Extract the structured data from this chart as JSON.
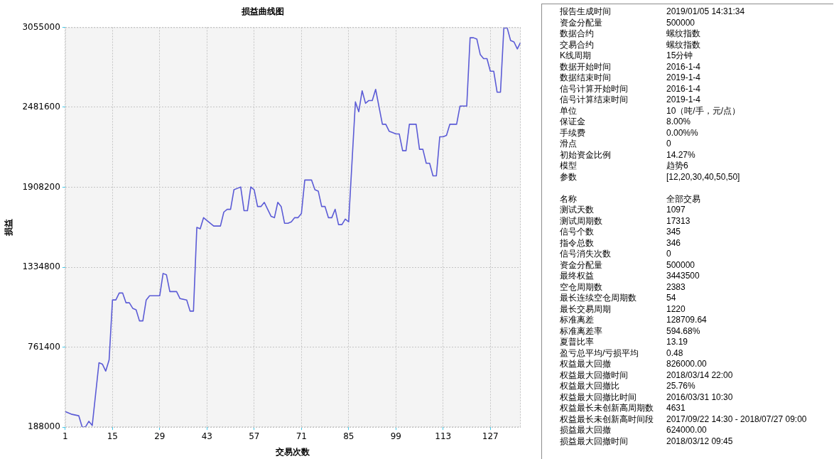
{
  "chart_data": [
    {
      "type": "line",
      "title": "损益曲线图",
      "xlabel": "交易次数",
      "ylabel": "损益",
      "color": "#5b5bd6",
      "x": [
        1,
        3,
        5,
        6,
        7,
        8,
        9,
        11,
        12,
        13,
        14,
        15,
        16,
        17,
        18,
        19,
        20,
        21,
        22,
        23,
        24,
        25,
        26,
        29,
        30,
        31,
        32,
        34,
        35,
        37,
        38,
        39,
        40,
        41,
        42,
        43,
        45,
        47,
        48,
        49,
        50,
        51,
        52,
        53,
        54,
        55,
        56,
        57,
        58,
        59,
        60,
        61,
        62,
        63,
        64,
        65,
        66,
        67,
        68,
        69,
        70,
        71,
        72,
        73,
        74,
        75,
        76,
        77,
        78,
        79,
        80,
        81,
        82,
        83,
        84,
        85,
        87,
        88,
        89,
        90,
        91,
        92,
        93,
        95,
        96,
        97,
        98,
        99,
        100,
        101,
        102,
        103,
        105,
        106,
        107,
        108,
        109,
        110,
        111,
        112,
        113,
        114,
        115,
        116,
        117,
        118,
        119,
        120,
        121,
        122,
        123,
        124,
        125,
        126,
        127,
        128,
        129,
        130,
        131,
        132,
        133,
        134,
        135,
        136
      ],
      "values": [
        300000,
        280000,
        270000,
        190000,
        190000,
        230000,
        200000,
        650000,
        640000,
        590000,
        670000,
        1100000,
        1100000,
        1150000,
        1150000,
        1080000,
        1080000,
        1040000,
        1030000,
        950000,
        950000,
        1100000,
        1130000,
        1130000,
        1290000,
        1280000,
        1160000,
        1160000,
        1110000,
        1100000,
        1020000,
        1020000,
        1620000,
        1610000,
        1690000,
        1670000,
        1630000,
        1630000,
        1730000,
        1750000,
        1750000,
        1890000,
        1900000,
        1910000,
        1740000,
        1740000,
        1910000,
        1890000,
        1770000,
        1770000,
        1800000,
        1750000,
        1700000,
        1690000,
        1800000,
        1770000,
        1650000,
        1650000,
        1660000,
        1690000,
        1690000,
        1720000,
        1960000,
        1960000,
        1960000,
        1890000,
        1880000,
        1770000,
        1770000,
        1690000,
        1690000,
        1750000,
        1640000,
        1640000,
        1680000,
        1660000,
        2520000,
        2450000,
        2600000,
        2510000,
        2530000,
        2530000,
        2610000,
        2360000,
        2360000,
        2310000,
        2300000,
        2290000,
        2290000,
        2170000,
        2170000,
        2360000,
        2360000,
        2180000,
        2180000,
        2080000,
        2080000,
        1990000,
        1990000,
        2270000,
        2270000,
        2280000,
        2360000,
        2360000,
        2360000,
        2490000,
        2490000,
        2490000,
        2980000,
        2980000,
        2970000,
        2860000,
        2830000,
        2830000,
        2740000,
        2740000,
        2590000,
        2590000,
        3050000,
        3050000,
        2960000,
        2950000,
        2900000,
        2950000
      ],
      "xlim": [
        1,
        136
      ],
      "xticks": [
        1,
        15,
        29,
        43,
        57,
        71,
        85,
        99,
        113,
        127
      ],
      "ylim": [
        188000,
        3055000
      ],
      "yticks": [
        188000,
        761400,
        1334800,
        1908200,
        2481600,
        3055000
      ],
      "grid": true
    },
    {
      "type": "other",
      "annotations": [
        "报告生成时间",
        "2019/01/05 14:31:34",
        "资金分配量",
        "500000",
        "数据合约",
        "螺纹指数",
        "交易合约",
        "螺纹指数",
        "K线周期",
        "15分钟",
        "数据开始时间",
        "2016-1-4",
        "数据结束时间",
        "2019-1-4",
        "信号计算开始时间",
        "2016-1-4",
        "信号计算结束时间",
        "2019-1-4",
        "单位",
        "10（吨/手，元/点）",
        "保证金",
        "8.00%",
        "手续费",
        "0.00%%",
        "滑点",
        "0",
        "初始资金比例",
        "14.27%",
        "模型",
        "趋势6",
        "参数",
        "[12,20,30,40,50,50]"
      ]
    },
    {
      "type": "other",
      "annotations": [
        "名称",
        "全部交易",
        "测试天数",
        "1097",
        "测试周期数",
        "17313",
        "信号个数",
        "345",
        "指令总数",
        "346",
        "信号消失次数",
        "0",
        "资金分配量",
        "500000",
        "最终权益",
        "3443500",
        "空仓周期数",
        "2383",
        "最长连续空仓周期数",
        "54",
        "最长交易周期",
        "1220",
        "标准离差",
        "128709.64",
        "标准离差率",
        "594.68%",
        "夏普比率",
        "13.19",
        "盈亏总平均/亏损平均",
        "0.48",
        "权益最大回撤",
        "826000.00",
        "权益最大回撤时间",
        "2018/03/14 22:00",
        "权益最大回撤比",
        "25.76%",
        "权益最大回撤比时间",
        "2016/03/31 10:30",
        "权益最长未创新高周期数",
        "4631",
        "权益最长未创新高时间段",
        "2017/09/22 14:30 - 2018/07/27 09:00",
        "损益最大回撤",
        "624000.00",
        "损益最大回撤时间",
        "2018/03/12 09:45"
      ]
    }
  ]
}
